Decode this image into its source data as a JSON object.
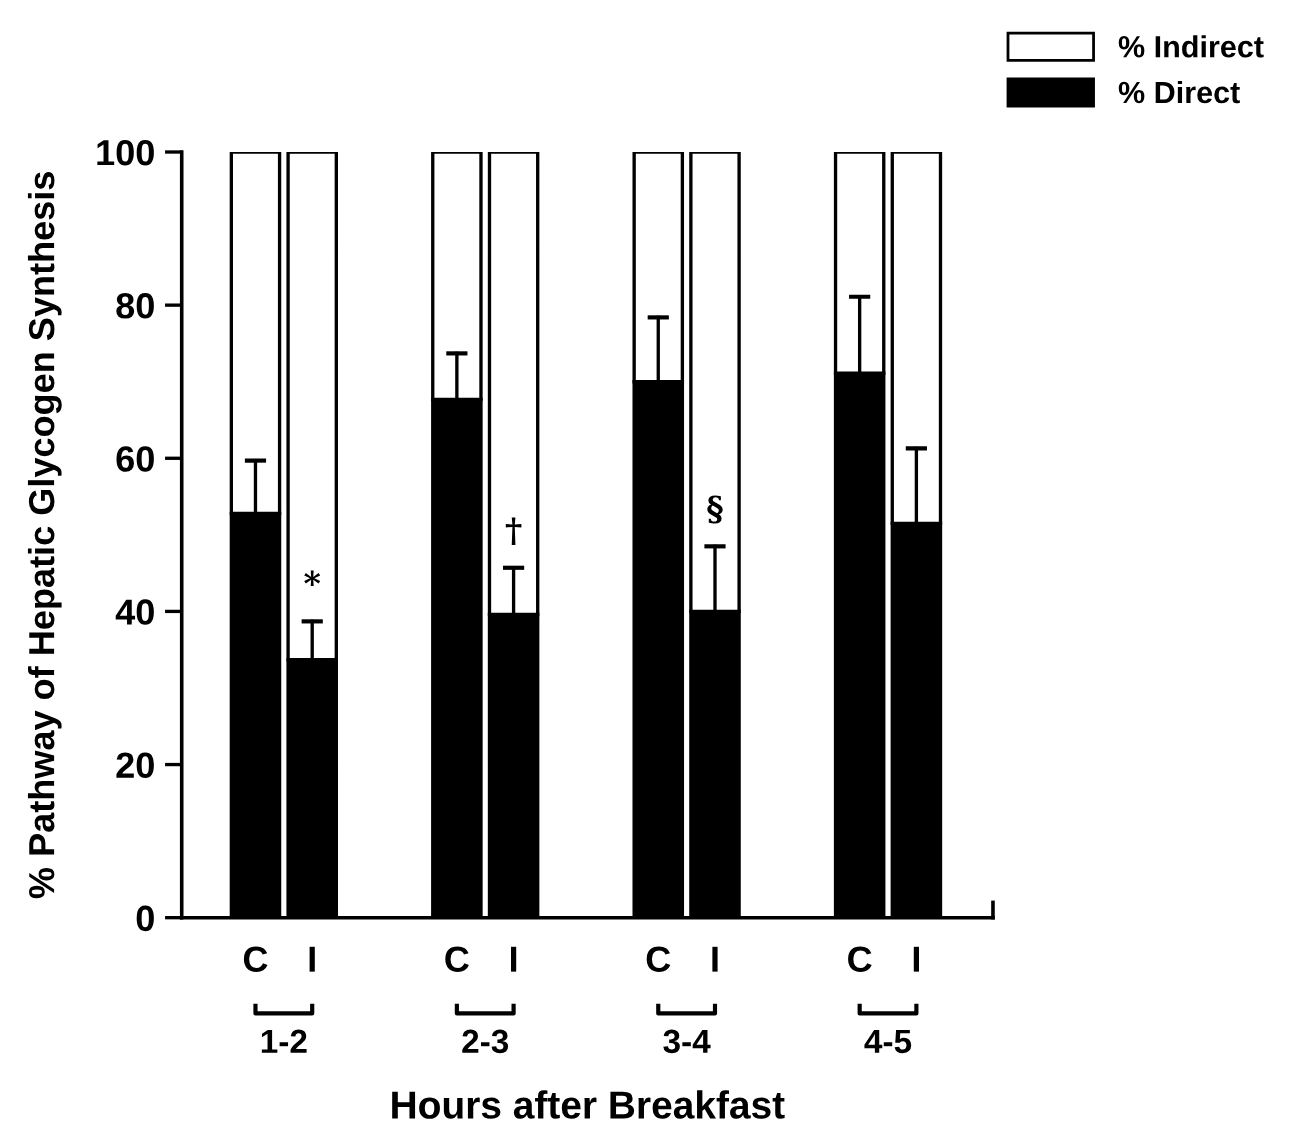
{
  "chart_data": {
    "type": "bar",
    "stacked": true,
    "ylabel": "% Pathway of Hepatic Glycogen Synthesis",
    "xlabel": "Hours after Breakfast",
    "categories": [
      "C",
      "I",
      "C",
      "I",
      "C",
      "I",
      "C",
      "I"
    ],
    "series": [
      {
        "name": "% Direct",
        "color": "#000000",
        "values": [
          52.8,
          33.7,
          67.7,
          39.6,
          70,
          40,
          71.1,
          51.5
        ],
        "errors": [
          [
            52.8,
            59.7
          ],
          [
            33.7,
            38.7
          ],
          [
            67.7,
            73.7
          ],
          [
            39.6,
            45.7
          ],
          [
            70,
            78.4
          ],
          [
            40,
            48.5
          ],
          [
            71.1,
            81.1
          ],
          [
            51.5,
            61.3
          ]
        ],
        "value_labels": [
          null,
          "*",
          null,
          "†",
          null,
          "§",
          null,
          null
        ]
      },
      {
        "name": "% Indirect",
        "color": "#ffffff",
        "values": [
          47.2,
          66.3,
          32.3,
          60.4,
          30,
          60,
          28.9,
          48.5
        ]
      }
    ],
    "annotations": [
      "1-2",
      "2-3",
      "3-4",
      "4-5"
    ],
    "ylim": [
      0,
      100
    ],
    "yticks": [
      0,
      20,
      40,
      60,
      80,
      100
    ],
    "grid": false,
    "legend": "top right"
  }
}
